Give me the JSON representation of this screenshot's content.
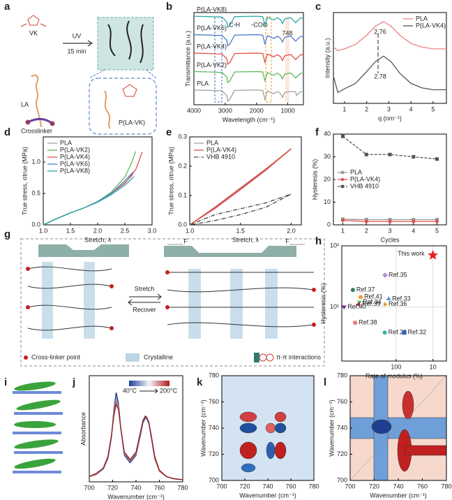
{
  "panel_labels": [
    "a",
    "b",
    "c",
    "d",
    "e",
    "f",
    "g",
    "h",
    "i",
    "j",
    "k",
    "l"
  ],
  "schematic_a": {
    "vk": "VK",
    "uv": "UV",
    "time": "15 min",
    "la": "LA",
    "crosslinker": "Crosslinker",
    "polymer": "P(LA-VK)"
  },
  "schematic_g": {
    "force_left": "F",
    "force_right": "F",
    "stretch": "Stretch",
    "recover": "Recover",
    "legend": [
      "Cross-linker point",
      "Crystalline",
      "π-π interactions"
    ]
  },
  "chart_data": [
    {
      "type": "line",
      "x_label": "Wavelength (cm⁻¹)",
      "y_label": "Transmittance (a.u.)",
      "xlim": [
        4000,
        500
      ],
      "xticks": [
        4000,
        3000,
        2000,
        1000
      ],
      "ylim": [
        0,
        5
      ],
      "legend": "inline",
      "annotations": [
        "C-H",
        "-COO",
        "748"
      ],
      "x": [
        4000,
        3500,
        3100,
        2950,
        2920,
        2850,
        2700,
        2000,
        1800,
        1730,
        1650,
        1450,
        1330,
        1230,
        1170,
        1100,
        1000,
        900,
        750,
        720,
        600,
        500
      ],
      "series": [
        {
          "name": "P(LA-VK8)",
          "color": "#2aa9a9",
          "values": [
            4.8,
            4.78,
            4.75,
            4.5,
            4.2,
            4.3,
            4.78,
            4.8,
            4.78,
            4.3,
            4.75,
            4.6,
            4.72,
            4.6,
            4.4,
            4.65,
            4.7,
            4.72,
            4.45,
            4.5,
            4.7,
            4.72
          ]
        },
        {
          "name": "P(LA-VK6)",
          "color": "#4a7cc9",
          "values": [
            3.8,
            3.78,
            3.75,
            3.5,
            3.2,
            3.3,
            3.78,
            3.8,
            3.78,
            3.3,
            3.75,
            3.6,
            3.72,
            3.6,
            3.4,
            3.65,
            3.7,
            3.72,
            3.45,
            3.5,
            3.7,
            3.72
          ]
        },
        {
          "name": "P(LA-VK4)",
          "color": "#e0504a",
          "values": [
            2.8,
            2.78,
            2.75,
            2.5,
            2.2,
            2.3,
            2.78,
            2.8,
            2.78,
            2.3,
            2.75,
            2.6,
            2.72,
            2.6,
            2.4,
            2.65,
            2.7,
            2.72,
            2.45,
            2.5,
            2.7,
            2.72
          ]
        },
        {
          "name": "P(LA-VK2)",
          "color": "#5cb85c",
          "values": [
            1.8,
            1.78,
            1.75,
            1.5,
            1.2,
            1.3,
            1.78,
            1.8,
            1.78,
            1.3,
            1.75,
            1.6,
            1.72,
            1.6,
            1.4,
            1.65,
            1.7,
            1.72,
            1.45,
            1.5,
            1.7,
            1.72
          ]
        },
        {
          "name": "PLA",
          "color": "#a0a0a0",
          "values": [
            0.8,
            0.78,
            0.75,
            0.5,
            0.2,
            0.3,
            0.78,
            0.8,
            0.78,
            0.3,
            0.75,
            0.6,
            0.72,
            0.6,
            0.4,
            0.65,
            0.7,
            0.72,
            0.7,
            0.5,
            0.7,
            0.72
          ]
        }
      ]
    },
    {
      "type": "line",
      "x_label": "q (nm⁻¹)",
      "y_label": "Intensity (a.u.)",
      "xlim": [
        0.5,
        5.6
      ],
      "xticks": [
        1,
        2,
        3,
        4,
        5
      ],
      "ylim": [
        0,
        1
      ],
      "legend": "upper right",
      "annotations": [
        "2.76",
        "2.78"
      ],
      "x": [
        0.5,
        0.7,
        1,
        1.5,
        2,
        2.4,
        2.76,
        3.1,
        3.5,
        4,
        4.5,
        5,
        5.6
      ],
      "series": [
        {
          "name": "PLA",
          "color": "#f08080",
          "values": [
            0.62,
            0.58,
            0.6,
            0.65,
            0.75,
            0.85,
            0.9,
            0.85,
            0.75,
            0.66,
            0.62,
            0.6,
            0.6
          ]
        },
        {
          "name": "P(LA-VK4)",
          "color": "#555555",
          "values": [
            0.3,
            0.12,
            0.16,
            0.22,
            0.35,
            0.46,
            0.52,
            0.46,
            0.33,
            0.22,
            0.17,
            0.15,
            0.15
          ]
        }
      ]
    },
    {
      "type": "line",
      "x_label": "Stretch, λ",
      "y_label": "True stress, σtrue (MPa)",
      "xlim": [
        1.0,
        3.0
      ],
      "xticks": [
        {
          "value": 1,
          "label": "1.0"
        },
        1.5,
        {
          "value": 2,
          "label": "2.0"
        },
        2.5,
        {
          "value": 3,
          "label": "3.0"
        }
      ],
      "ylim": [
        0,
        1.4
      ],
      "yticks": [
        {
          "value": 0,
          "label": "0.0"
        },
        0.5,
        {
          "value": 1,
          "label": "1.0"
        }
      ],
      "legend": "upper left",
      "series": [
        {
          "name": "PLA",
          "color": "#a0a0a0",
          "x": [
            1,
            1.25,
            1.5,
            1.75,
            2,
            2.25,
            2.5,
            2.65
          ],
          "values": [
            0,
            0.1,
            0.19,
            0.27,
            0.37,
            0.5,
            0.67,
            0.8
          ]
        },
        {
          "name": "P(LA-VK2)",
          "color": "#5cb85c",
          "x": [
            1,
            1.25,
            1.5,
            1.75,
            2,
            2.25,
            2.5,
            2.62,
            2.7
          ],
          "values": [
            0,
            0.1,
            0.19,
            0.27,
            0.37,
            0.52,
            0.76,
            0.98,
            1.17
          ]
        },
        {
          "name": "P(LA-VK4)",
          "color": "#e0504a",
          "x": [
            1,
            1.25,
            1.5,
            1.75,
            2,
            2.25,
            2.5,
            2.7,
            2.82
          ],
          "values": [
            0,
            0.1,
            0.19,
            0.27,
            0.37,
            0.5,
            0.66,
            0.88,
            1.16
          ]
        },
        {
          "name": "P(LA-VK6)",
          "color": "#4a7cc9",
          "x": [
            1,
            1.25,
            1.5,
            1.75,
            2,
            2.25,
            2.5,
            2.65
          ],
          "values": [
            0,
            0.1,
            0.19,
            0.27,
            0.37,
            0.5,
            0.7,
            0.84
          ]
        },
        {
          "name": "P(LA-VK8)",
          "color": "#2aa9a9",
          "x": [
            1,
            1.25,
            1.5,
            1.75,
            2,
            2.25,
            2.5,
            2.67
          ],
          "values": [
            0,
            0.1,
            0.19,
            0.27,
            0.36,
            0.48,
            0.63,
            0.77
          ]
        }
      ]
    },
    {
      "type": "line",
      "x_label": "Stretch, λ",
      "y_label": "True stress, σtrue (MPa)",
      "xlim": [
        1.0,
        2.1
      ],
      "xticks": [
        {
          "value": 1,
          "label": "1.0"
        },
        1.5,
        {
          "value": 2,
          "label": "2.0"
        }
      ],
      "ylim": [
        0,
        0.3
      ],
      "yticks": [
        {
          "value": 0,
          "label": "0.0"
        },
        0.1,
        0.2,
        0.3
      ],
      "legend": "upper left",
      "series": [
        {
          "name": "PLA",
          "color": "#a0a0a0",
          "x": [
            1,
            1.25,
            1.5,
            1.75,
            2,
            1.75,
            1.5,
            1.25,
            1
          ],
          "values": [
            0,
            0.061,
            0.126,
            0.191,
            0.258,
            0.188,
            0.122,
            0.058,
            0
          ]
        },
        {
          "name": "P(LA-VK4)",
          "color": "#e0504a",
          "x": [
            1,
            1.25,
            1.5,
            1.75,
            2,
            1.75,
            1.5,
            1.25,
            1
          ],
          "values": [
            0,
            0.06,
            0.125,
            0.19,
            0.26,
            0.186,
            0.12,
            0.056,
            0
          ]
        },
        {
          "name": "VHB 4910",
          "color": "#444444",
          "dash": "dashdot",
          "x": [
            1,
            1.25,
            1.5,
            1.75,
            2,
            1.75,
            1.5,
            1.25,
            1
          ],
          "values": [
            0,
            0.035,
            0.055,
            0.075,
            0.105,
            0.06,
            0.035,
            0.015,
            0
          ]
        }
      ]
    },
    {
      "type": "line",
      "x_label": "Cycles",
      "y_label": "Hysteresis (%)",
      "xlim": [
        0.6,
        5.4
      ],
      "xticks": [
        1,
        2,
        3,
        4,
        5
      ],
      "ylim": [
        0,
        40
      ],
      "yticks": [
        0,
        10,
        20,
        30,
        40
      ],
      "legend": "center left",
      "x": [
        1,
        2,
        3,
        4,
        5
      ],
      "series": [
        {
          "name": "PLA",
          "color": "#999999",
          "marker": "square",
          "values": [
            2.5,
            2.3,
            2.3,
            2.3,
            2.3
          ]
        },
        {
          "name": "P(LA-VK4)",
          "color": "#e0504a",
          "marker": "circle",
          "values": [
            2,
            1.5,
            1.5,
            1.5,
            1.5
          ]
        },
        {
          "name": "VHB 4910",
          "color": "#555555",
          "marker": "square",
          "dash": "dash",
          "values": [
            39,
            31,
            31,
            30,
            29
          ]
        }
      ]
    },
    {
      "type": "scatter",
      "x_label": "Rate of modulus (%)",
      "y_label": "Hysteresis (%)",
      "xlog": true,
      "ylog": true,
      "grid": true,
      "xlim": [
        3000,
        4.3
      ],
      "xticks": [
        100,
        10
      ],
      "ylim": [
        1.3,
        100
      ],
      "yticks": [
        {
          "value": 10,
          "label": "10¹"
        },
        {
          "value": 100,
          "label": "10²"
        }
      ],
      "points": [
        {
          "label": "Ref.37",
          "x": 1500,
          "y": 19,
          "color": "#2e7d5b",
          "marker": "circle"
        },
        {
          "label": "Ref.41",
          "x": 920,
          "y": 14.5,
          "color": "#f0a030",
          "marker": "circle"
        },
        {
          "label": "Ref.34",
          "x": 1000,
          "y": 12,
          "color": "#5cb85c",
          "marker": "tri-down"
        },
        {
          "label": "Ref.35",
          "x": 200,
          "y": 33,
          "color": "#b58fd6",
          "marker": "diamond"
        },
        {
          "label": "Ref.33",
          "x": 160,
          "y": 13.5,
          "color": "#5b8fd0",
          "marker": "tri-up"
        },
        {
          "label": "Ref.39",
          "x": 1050,
          "y": 11,
          "color": "#a0203a",
          "marker": "tri-left"
        },
        {
          "label": "Ref.36",
          "x": 200,
          "y": 11,
          "color": "#e8a020",
          "marker": "tri-right"
        },
        {
          "label": "Ref.40",
          "x": 2600,
          "y": 10,
          "color": "#7a2a9a",
          "marker": "tri-down"
        },
        {
          "label": "Ref.38",
          "x": 1300,
          "y": 5.5,
          "color": "#f07878",
          "marker": "pentagon"
        },
        {
          "label": "Ref.21",
          "x": 204,
          "y": 3.8,
          "color": "#30b8a8",
          "marker": "circle"
        },
        {
          "label": "Ref.32",
          "x": 60,
          "y": 3.8,
          "color": "#2a5fbf",
          "marker": "square"
        },
        {
          "label": "This work",
          "x": 10,
          "y": 70,
          "color": "#e82020",
          "marker": "star"
        }
      ]
    },
    {
      "type": "line",
      "x_label": "Wavenumber (cm⁻¹)",
      "y_label": "Absorbance",
      "xlim": [
        700,
        780
      ],
      "xticks": [
        700,
        720,
        740,
        760,
        780
      ],
      "ylim": [
        0,
        1
      ],
      "colorbar": {
        "min_label": "40°C",
        "max_label": "200°C"
      },
      "x": [
        700,
        706,
        712,
        716,
        719,
        721,
        723,
        725,
        727,
        730,
        735,
        740,
        744,
        746,
        748,
        749,
        751,
        753,
        756,
        760,
        766,
        772,
        780
      ],
      "series": [
        {
          "color": "#1f2f6f",
          "values": [
            0.05,
            0.07,
            0.12,
            0.22,
            0.42,
            0.68,
            0.84,
            0.74,
            0.5,
            0.25,
            0.18,
            0.25,
            0.45,
            0.56,
            0.6,
            0.6,
            0.55,
            0.42,
            0.22,
            0.1,
            0.05,
            0.03,
            0.02
          ]
        },
        {
          "color": "#5b8fd0",
          "values": [
            0.05,
            0.07,
            0.12,
            0.22,
            0.42,
            0.66,
            0.8,
            0.72,
            0.5,
            0.26,
            0.19,
            0.26,
            0.46,
            0.57,
            0.61,
            0.61,
            0.56,
            0.43,
            0.23,
            0.1,
            0.05,
            0.03,
            0.02
          ]
        },
        {
          "color": "#d46a5a",
          "values": [
            0.05,
            0.07,
            0.13,
            0.23,
            0.43,
            0.64,
            0.76,
            0.7,
            0.5,
            0.27,
            0.2,
            0.27,
            0.47,
            0.58,
            0.62,
            0.61,
            0.56,
            0.43,
            0.23,
            0.1,
            0.05,
            0.03,
            0.02
          ]
        },
        {
          "color": "#8b1a1a",
          "values": [
            0.05,
            0.08,
            0.13,
            0.24,
            0.44,
            0.62,
            0.73,
            0.68,
            0.5,
            0.28,
            0.21,
            0.28,
            0.48,
            0.58,
            0.62,
            0.61,
            0.56,
            0.44,
            0.24,
            0.11,
            0.05,
            0.03,
            0.02
          ]
        }
      ]
    },
    {
      "type": "contour",
      "x_label": "Wavenumber (cm⁻¹)",
      "y_label": "Wavenumber (cm⁻¹)",
      "background": "#d3e3f1",
      "xlim": [
        700,
        780
      ],
      "xticks": [
        700,
        720,
        740,
        760,
        780
      ],
      "ylim": [
        700,
        780
      ],
      "yticks": [
        700,
        720,
        740,
        760,
        780
      ]
    },
    {
      "type": "contour",
      "x_label": "Wavenumber (cm⁻¹)",
      "y_label": "Wavenumber (cm⁻¹)",
      "background": "#f6d8cd",
      "xlim": [
        700,
        780
      ],
      "xticks": [
        700,
        720,
        740,
        760,
        780
      ],
      "ylim": [
        700,
        780
      ],
      "yticks": [
        700,
        720,
        740,
        760,
        780
      ]
    }
  ]
}
